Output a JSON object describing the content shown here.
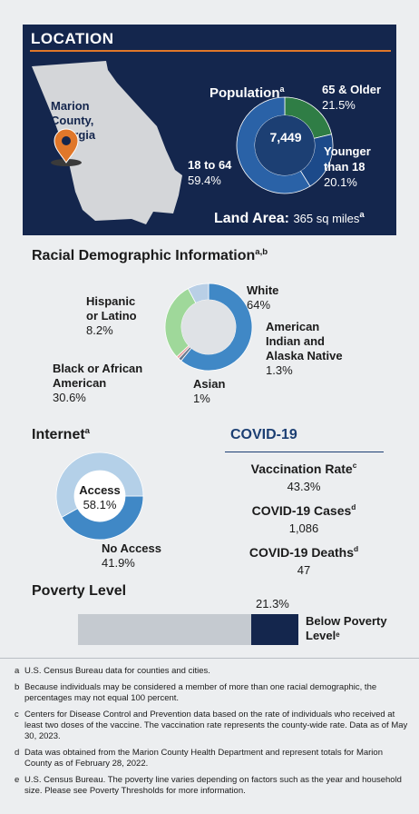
{
  "location": {
    "title": "LOCATION",
    "county": [
      "Marion",
      "County,",
      "Georgia"
    ],
    "population_title": "Population",
    "population_note": "a",
    "total": "7,449",
    "segments": [
      {
        "label": [
          "65 & Older"
        ],
        "pct": "21.5%",
        "value": 21.5,
        "color": "#2f7d45"
      },
      {
        "label": [
          "Younger",
          "than 18"
        ],
        "pct": "20.1%",
        "value": 20.1,
        "color": "#1c4a8a"
      },
      {
        "label": [
          "18 to 64"
        ],
        "pct": "59.4%",
        "value": 59.4,
        "color": "#2a62a7"
      }
    ],
    "land_label": "Land Area:",
    "land_value": "365 sq miles",
    "land_note": "a"
  },
  "race": {
    "title": "Racial Demographic Information",
    "title_note": "a,b",
    "segments": [
      {
        "label": "White",
        "pct": "64%",
        "value": 64,
        "color": "#4088c6"
      },
      {
        "label": "American Indian and Alaska Native",
        "pct": "1.3%",
        "value": 1.3,
        "color": "#6b7b8f"
      },
      {
        "label": "Asian",
        "pct": "1%",
        "value": 1,
        "color": "#e8a0a0"
      },
      {
        "label": "Black or African American",
        "pct": "30.6%",
        "value": 30.6,
        "color": "#9fd89a"
      },
      {
        "label": "Hispanic or Latino",
        "pct": "8.2%",
        "value": 8.2,
        "color": "#b9cfe6"
      }
    ],
    "labels": {
      "white": [
        "White"
      ],
      "aian": [
        "American",
        "Indian and",
        "Alaska Native"
      ],
      "asian": [
        "Asian"
      ],
      "black": [
        "Black or African",
        "American"
      ],
      "hispanic": [
        "Hispanic",
        "or Latino"
      ]
    }
  },
  "internet": {
    "title": "Internet",
    "title_note": "a",
    "access_label": "Access",
    "access_pct": "58.1%",
    "access_value": 58.1,
    "no_access_label": "No Access",
    "no_access_pct": "41.9%",
    "no_access_value": 41.9,
    "access_color": "#b4d0e8",
    "no_access_color": "#4088c6"
  },
  "covid": {
    "title": "COVID-19",
    "items": [
      {
        "label": "Vaccination Rate",
        "note": "c",
        "value": "43.3%"
      },
      {
        "label": "COVID-19 Cases",
        "note": "d",
        "value": "1,086"
      },
      {
        "label": "COVID-19 Deaths",
        "note": "d",
        "value": "47"
      }
    ]
  },
  "poverty": {
    "title": "Poverty Level",
    "pct": "21.3%",
    "value": 21.3,
    "label": [
      "Below Poverty",
      "Level"
    ],
    "note": "e"
  },
  "footnotes": [
    {
      "key": "a",
      "text": "U.S. Census Bureau data for counties and cities."
    },
    {
      "key": "b",
      "text": "Because individuals may be considered a member of more than one racial demographic, the percentages may not equal 100 percent."
    },
    {
      "key": "c",
      "text": "Centers for Disease Control and Prevention data based on the rate of individuals who received at least two doses of the vaccine. The vaccination rate represents the county-wide rate. Data as of May 30, 2023."
    },
    {
      "key": "d",
      "text": "Data was obtained from the Marion County Health Department and represent totals for Marion County as of February 28, 2022."
    },
    {
      "key": "e",
      "text": "U.S. Census Bureau. The poverty line varies depending on factors such as the year and household size. Please see Poverty Thresholds for more information."
    }
  ],
  "colors": {
    "navy": "#14264d",
    "accent_orange": "#e0772a",
    "pin": "#e0772a",
    "map": "#d4d6d9"
  }
}
